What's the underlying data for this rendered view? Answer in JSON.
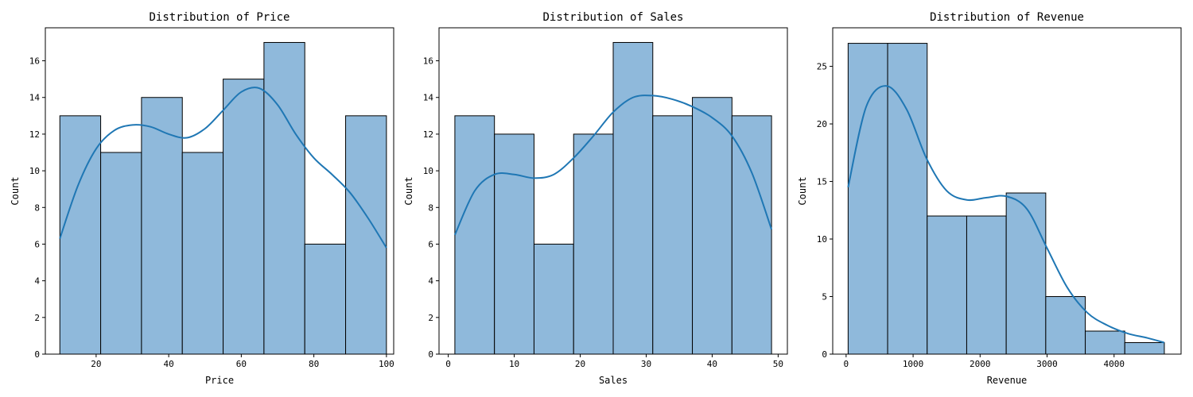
{
  "colors": {
    "bar_fill": "#8fb9db",
    "bar_edge": "#000000",
    "kde_line": "#1f77b4",
    "axes": "#000000",
    "background": "#ffffff"
  },
  "chart_data": [
    {
      "type": "bar",
      "title": "Distribution of Price",
      "xlabel": "Price",
      "ylabel": "Count",
      "xlim": [
        6,
        102
      ],
      "ylim": [
        0,
        17.8
      ],
      "xticks": [
        20,
        40,
        60,
        80,
        100
      ],
      "yticks": [
        0,
        2,
        4,
        6,
        8,
        10,
        12,
        14,
        16
      ],
      "bin_edges": [
        10,
        21.25,
        32.5,
        43.75,
        55,
        66.25,
        77.5,
        88.75,
        100
      ],
      "counts": [
        13,
        11,
        14,
        11,
        15,
        17,
        6,
        13
      ],
      "kde": {
        "x": [
          10,
          15,
          20,
          25,
          30,
          35,
          40,
          45,
          50,
          55,
          60,
          65,
          70,
          75,
          80,
          85,
          90,
          95,
          100
        ],
        "y": [
          6.3,
          9.2,
          11.2,
          12.2,
          12.5,
          12.4,
          12.0,
          11.8,
          12.3,
          13.3,
          14.3,
          14.5,
          13.6,
          12.0,
          10.7,
          9.8,
          8.8,
          7.4,
          5.8
        ]
      }
    },
    {
      "type": "bar",
      "title": "Distribution of Sales",
      "xlabel": "Sales",
      "ylabel": "Count",
      "xlim": [
        -1.4,
        51.4
      ],
      "ylim": [
        0,
        17.8
      ],
      "xticks": [
        0,
        10,
        20,
        30,
        40,
        50
      ],
      "yticks": [
        0,
        2,
        4,
        6,
        8,
        10,
        12,
        14,
        16
      ],
      "bin_edges": [
        1,
        7,
        13,
        19,
        25,
        31,
        37,
        43,
        49
      ],
      "counts": [
        13,
        12,
        6,
        12,
        17,
        13,
        14,
        13
      ],
      "kde": {
        "x": [
          1,
          4,
          7,
          10,
          13,
          16,
          19,
          22,
          25,
          28,
          31,
          34,
          37,
          40,
          43,
          46,
          49
        ],
        "y": [
          6.5,
          8.9,
          9.8,
          9.8,
          9.6,
          9.8,
          10.7,
          11.9,
          13.2,
          14.0,
          14.1,
          13.9,
          13.5,
          12.9,
          11.9,
          9.9,
          6.8
        ]
      }
    },
    {
      "type": "bar",
      "title": "Distribution of Revenue",
      "xlabel": "Revenue",
      "ylabel": "Count",
      "xlim": [
        -200,
        5000
      ],
      "ylim": [
        0,
        28.35
      ],
      "xticks": [
        0,
        1000,
        2000,
        3000,
        4000
      ],
      "yticks": [
        0,
        5,
        10,
        15,
        20,
        25
      ],
      "bin_edges": [
        30,
        620,
        1210,
        1800,
        2390,
        2980,
        3570,
        4160,
        4750
      ],
      "counts": [
        27,
        27,
        12,
        12,
        14,
        5,
        2,
        1
      ],
      "kde": {
        "x": [
          30,
          300,
          600,
          900,
          1200,
          1500,
          1800,
          2100,
          2400,
          2700,
          3000,
          3300,
          3600,
          3900,
          4200,
          4500,
          4750
        ],
        "y": [
          14.5,
          21.5,
          23.3,
          21.3,
          17.0,
          14.2,
          13.4,
          13.6,
          13.7,
          12.6,
          9.2,
          5.8,
          3.6,
          2.5,
          1.8,
          1.4,
          1.0
        ]
      }
    }
  ]
}
